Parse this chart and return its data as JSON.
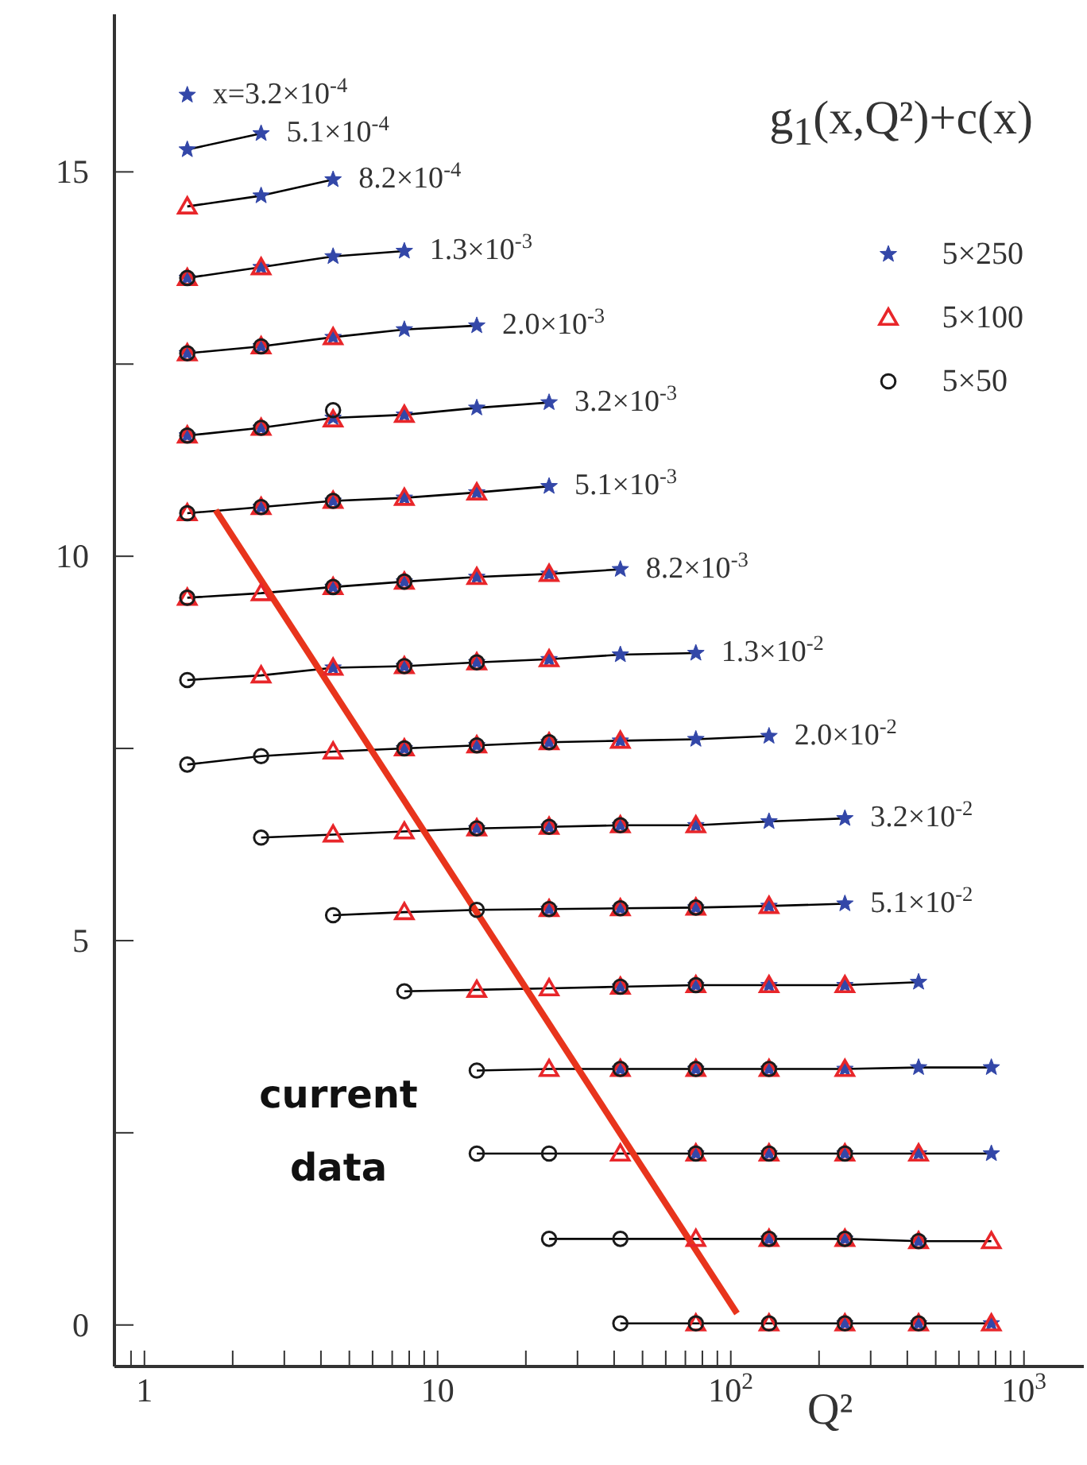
{
  "chart_data": {
    "type": "scatter",
    "title": "g$_{1}$(x,Q²)+c(x)",
    "xlabel": "Q²",
    "log": "x",
    "legend": "top right",
    "grid": false,
    "xlim": [
      0.79,
      1600
    ],
    "ylim": [
      -0.54,
      17.05
    ],
    "xticks": [
      {
        "value": 0.9,
        "label": null
      },
      1,
      {
        "value": 2,
        "label": null
      },
      {
        "value": 3,
        "label": null
      },
      {
        "value": 4,
        "label": null
      },
      {
        "value": 5,
        "label": null
      },
      {
        "value": 6,
        "label": null
      },
      {
        "value": 7,
        "label": null
      },
      {
        "value": 8,
        "label": null
      },
      {
        "value": 9,
        "label": null
      },
      10,
      {
        "value": 20,
        "label": null
      },
      {
        "value": 30,
        "label": null
      },
      {
        "value": 40,
        "label": null
      },
      {
        "value": 50,
        "label": null
      },
      {
        "value": 60,
        "label": null
      },
      {
        "value": 70,
        "label": null
      },
      {
        "value": 80,
        "label": null
      },
      {
        "value": 90,
        "label": null
      },
      {
        "value": 100,
        "label": "10$^{2}$"
      },
      {
        "value": 200,
        "label": null
      },
      {
        "value": 300,
        "label": null
      },
      {
        "value": 400,
        "label": null
      },
      {
        "value": 500,
        "label": null
      },
      {
        "value": 600,
        "label": null
      },
      {
        "value": 700,
        "label": null
      },
      {
        "value": 800,
        "label": null
      },
      {
        "value": 900,
        "label": null
      },
      {
        "value": 1000,
        "label": "10$^{3}$"
      }
    ],
    "yticks": [
      0,
      {
        "value": 2.5,
        "label": null
      },
      5,
      {
        "value": 7.5,
        "label": null
      },
      10,
      {
        "value": 12.5,
        "label": null
      },
      15
    ],
    "series": [
      {
        "type": "line",
        "color": "#000000",
        "x": [
          1.4,
          2.5
        ],
        "values": [
          15.29,
          15.5
        ]
      },
      {
        "type": "line",
        "color": "#000000",
        "x": [
          1.4,
          2.5,
          4.4
        ],
        "values": [
          14.55,
          14.69,
          14.9
        ]
      },
      {
        "type": "line",
        "color": "#000000",
        "x": [
          1.4,
          2.5,
          4.4,
          7.7
        ],
        "values": [
          13.62,
          13.76,
          13.9,
          13.97
        ]
      },
      {
        "type": "line",
        "color": "#000000",
        "x": [
          1.4,
          2.5,
          4.4,
          7.7,
          13.6
        ],
        "values": [
          12.64,
          12.73,
          12.85,
          12.95,
          13.0
        ]
      },
      {
        "type": "line",
        "color": "#000000",
        "x": [
          1.4,
          2.5,
          4.4,
          7.7,
          13.6,
          24
        ],
        "values": [
          11.57,
          11.67,
          11.8,
          11.84,
          11.93,
          12.0
        ]
      },
      {
        "type": "line",
        "color": "#000000",
        "x": [
          1.4,
          2.5,
          4.4,
          7.7,
          13.6,
          24
        ],
        "values": [
          10.56,
          10.64,
          10.72,
          10.76,
          10.83,
          10.91
        ]
      },
      {
        "type": "line",
        "color": "#000000",
        "x": [
          1.4,
          2.5,
          4.4,
          7.7,
          13.6,
          24,
          42
        ],
        "values": [
          9.46,
          9.52,
          9.6,
          9.67,
          9.73,
          9.77,
          9.83
        ]
      },
      {
        "type": "line",
        "color": "#000000",
        "x": [
          1.4,
          2.5,
          4.4,
          7.7,
          13.6,
          24,
          42,
          76
        ],
        "values": [
          8.39,
          8.45,
          8.55,
          8.57,
          8.62,
          8.66,
          8.72,
          8.74
        ]
      },
      {
        "type": "line",
        "color": "#000000",
        "x": [
          1.4,
          2.5,
          4.4,
          7.7,
          13.6,
          24,
          42,
          76,
          135
        ],
        "values": [
          7.29,
          7.4,
          7.46,
          7.5,
          7.54,
          7.58,
          7.6,
          7.62,
          7.66
        ]
      },
      {
        "type": "line",
        "color": "#000000",
        "x": [
          2.5,
          4.4,
          7.7,
          13.6,
          24,
          42,
          76,
          135,
          245
        ],
        "values": [
          6.34,
          6.38,
          6.42,
          6.46,
          6.48,
          6.5,
          6.5,
          6.55,
          6.59
        ]
      },
      {
        "type": "line",
        "color": "#000000",
        "x": [
          4.4,
          7.7,
          13.6,
          24,
          42,
          76,
          135,
          245
        ],
        "values": [
          5.33,
          5.37,
          5.4,
          5.41,
          5.42,
          5.43,
          5.45,
          5.48
        ]
      },
      {
        "type": "line",
        "color": "#000000",
        "x": [
          7.7,
          13.6,
          24,
          42,
          76,
          135,
          245,
          437
        ],
        "values": [
          4.34,
          4.36,
          4.38,
          4.4,
          4.42,
          4.42,
          4.42,
          4.46
        ]
      },
      {
        "type": "line",
        "color": "#000000",
        "x": [
          13.6,
          24,
          42,
          76,
          135,
          245,
          437,
          774
        ],
        "values": [
          3.31,
          3.33,
          3.33,
          3.33,
          3.33,
          3.33,
          3.35,
          3.35
        ]
      },
      {
        "type": "line",
        "color": "#000000",
        "x": [
          13.6,
          24,
          42,
          76,
          135,
          245,
          437,
          774
        ],
        "values": [
          2.23,
          2.23,
          2.23,
          2.23,
          2.23,
          2.23,
          2.23,
          2.23
        ]
      },
      {
        "type": "line",
        "color": "#000000",
        "x": [
          24,
          42,
          76,
          135,
          245,
          437,
          774
        ],
        "values": [
          1.12,
          1.12,
          1.12,
          1.12,
          1.12,
          1.09,
          1.09
        ]
      },
      {
        "type": "line",
        "color": "#000000",
        "x": [
          42,
          76,
          135,
          245,
          437,
          774
        ],
        "values": [
          0.02,
          0.02,
          0.02,
          0.02,
          0.02,
          0.02
        ]
      },
      {
        "name": "5×250",
        "marker": "star",
        "color": "#3347a8",
        "x": [
          1.4,
          1.4,
          2.5,
          2.5,
          4.4,
          1.4,
          2.5,
          4.4,
          7.7,
          1.4,
          2.5,
          4.4,
          7.7,
          13.6,
          1.4,
          2.5,
          4.4,
          7.7,
          13.6,
          24,
          2.5,
          4.4,
          7.7,
          13.6,
          24,
          4.4,
          7.7,
          13.6,
          24,
          42,
          4.4,
          7.7,
          13.6,
          24,
          42,
          76,
          7.7,
          13.6,
          24,
          42,
          76,
          135,
          13.6,
          24,
          42,
          76,
          135,
          245,
          24,
          42,
          76,
          135,
          245,
          42,
          76,
          135,
          245,
          437,
          42,
          76,
          135,
          245,
          437,
          774,
          76,
          135,
          245,
          437,
          774,
          135,
          245,
          437,
          245,
          437,
          774
        ],
        "values": [
          16.0,
          15.29,
          15.5,
          14.69,
          14.9,
          13.62,
          13.76,
          13.9,
          13.97,
          12.64,
          12.73,
          12.85,
          12.95,
          13.0,
          11.57,
          11.67,
          11.8,
          11.84,
          11.93,
          12.0,
          10.64,
          10.72,
          10.76,
          10.83,
          10.91,
          9.6,
          9.67,
          9.73,
          9.77,
          9.83,
          8.55,
          8.57,
          8.62,
          8.66,
          8.72,
          8.74,
          7.5,
          7.54,
          7.58,
          7.6,
          7.62,
          7.66,
          6.46,
          6.48,
          6.5,
          6.5,
          6.55,
          6.59,
          5.41,
          5.42,
          5.43,
          5.45,
          5.48,
          4.4,
          4.42,
          4.42,
          4.42,
          4.46,
          3.33,
          3.33,
          3.33,
          3.33,
          3.35,
          3.35,
          2.23,
          2.23,
          2.23,
          2.23,
          2.23,
          1.12,
          1.12,
          1.09,
          0.02,
          0.02,
          0.02
        ]
      },
      {
        "name": "5×100",
        "marker": "triangle",
        "color": "#e8262a",
        "x": [
          1.4,
          1.4,
          2.5,
          1.4,
          2.5,
          4.4,
          1.4,
          2.5,
          4.4,
          7.7,
          1.4,
          2.5,
          4.4,
          7.7,
          13.6,
          1.4,
          2.5,
          4.4,
          7.7,
          13.6,
          24,
          2.5,
          4.4,
          7.7,
          13.6,
          24,
          4.4,
          7.7,
          13.6,
          24,
          42,
          4.4,
          7.7,
          13.6,
          24,
          42,
          76,
          7.7,
          24,
          42,
          76,
          135,
          13.6,
          24,
          42,
          76,
          135,
          245,
          24,
          42,
          76,
          135,
          245,
          42,
          76,
          135,
          245,
          437,
          76,
          135,
          245,
          437,
          774,
          76,
          135,
          245,
          437,
          774
        ],
        "values": [
          14.55,
          13.62,
          13.76,
          12.64,
          12.73,
          12.85,
          11.57,
          11.67,
          11.78,
          11.84,
          10.56,
          10.64,
          10.72,
          10.76,
          10.83,
          9.46,
          9.52,
          9.6,
          9.67,
          9.73,
          9.77,
          8.45,
          8.55,
          8.57,
          8.62,
          8.66,
          7.46,
          7.5,
          7.54,
          7.58,
          7.6,
          6.38,
          6.42,
          6.46,
          6.48,
          6.5,
          6.5,
          5.37,
          5.41,
          5.42,
          5.43,
          5.45,
          4.36,
          4.38,
          4.4,
          4.42,
          4.42,
          4.42,
          3.33,
          3.33,
          3.33,
          3.33,
          3.33,
          2.23,
          2.23,
          2.23,
          2.23,
          2.23,
          1.12,
          1.12,
          1.12,
          1.09,
          1.09,
          0.02,
          0.02,
          0.02,
          0.02,
          0.02
        ]
      },
      {
        "name": "5×50",
        "marker": "circle",
        "color": "#1a1a1a",
        "x": [
          1.4,
          1.4,
          2.5,
          1.4,
          2.5,
          4.4,
          1.4,
          2.5,
          4.4,
          1.4,
          4.4,
          7.7,
          1.4,
          7.7,
          13.6,
          1.4,
          2.5,
          7.7,
          13.6,
          24,
          2.5,
          13.6,
          24,
          42,
          4.4,
          13.6,
          24,
          42,
          76,
          7.7,
          42,
          76,
          13.6,
          42,
          76,
          135,
          13.6,
          24,
          76,
          135,
          245,
          24,
          42,
          135,
          245,
          437,
          42,
          76,
          135,
          245,
          437
        ],
        "values": [
          13.62,
          12.64,
          12.73,
          11.57,
          11.67,
          11.9,
          10.56,
          10.64,
          10.72,
          9.46,
          9.6,
          9.67,
          8.39,
          8.57,
          8.62,
          7.29,
          7.4,
          7.5,
          7.54,
          7.58,
          6.34,
          6.46,
          6.48,
          6.5,
          5.33,
          5.4,
          5.41,
          5.42,
          5.43,
          4.34,
          4.4,
          4.42,
          3.31,
          3.33,
          3.33,
          3.33,
          2.23,
          2.23,
          2.23,
          2.23,
          2.23,
          1.12,
          1.12,
          1.12,
          1.12,
          1.09,
          0.02,
          0.02,
          0.02,
          0.02,
          0.02
        ]
      },
      {
        "type": "line",
        "color": "#e8341c",
        "x": [
          1.75,
          105
        ],
        "values": [
          10.6,
          0.15
        ]
      }
    ],
    "annotations": [
      "current data",
      {
        "text": "x=3.2×10$^{-4}$",
        "x": 1.4,
        "y": 16.0
      },
      {
        "text": "5.1×10$^{-4}$",
        "x": 2.5,
        "y": 15.5
      },
      {
        "text": "8.2×10$^{-4}$",
        "x": 4.4,
        "y": 14.9
      },
      {
        "text": "1.3×10$^{-3}$",
        "x": 7.7,
        "y": 13.97
      },
      {
        "text": "2.0×10$^{-3}$",
        "x": 13.6,
        "y": 13.0
      },
      {
        "text": "3.2×10$^{-3}$",
        "x": 24,
        "y": 12.0
      },
      {
        "text": "5.1×10$^{-3}$",
        "x": 24,
        "y": 10.91
      },
      {
        "text": "8.2×10$^{-3}$",
        "x": 42,
        "y": 9.83
      },
      {
        "text": "1.3×10$^{-2}$",
        "x": 76,
        "y": 8.74
      },
      {
        "text": "2.0×10$^{-2}$",
        "x": 135,
        "y": 7.66
      },
      {
        "text": "3.2×10$^{-2}$",
        "x": 245,
        "y": 6.59
      },
      {
        "text": "5.1×10$^{-2}$",
        "x": 245,
        "y": 5.48
      }
    ]
  }
}
